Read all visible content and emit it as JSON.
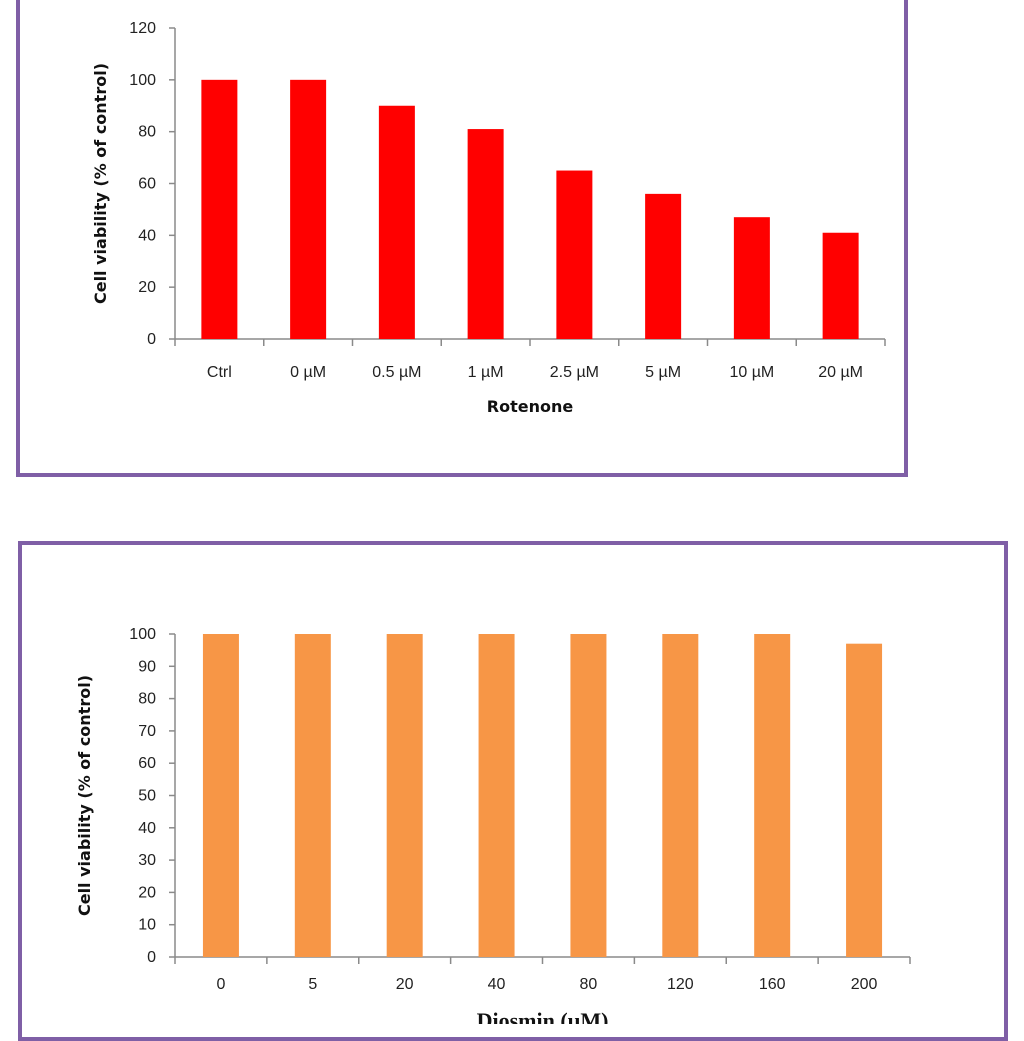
{
  "chart_data": [
    {
      "type": "bar",
      "categories": [
        "Ctrl",
        "0 µM",
        "0.5 µM",
        "1  µM",
        "2.5 µM",
        "5 µM",
        "10 µM",
        "20 µM"
      ],
      "values": [
        100,
        100,
        90,
        81,
        65,
        56,
        47,
        41
      ],
      "xlabel": "Rotenone",
      "ylabel": "Cell viability (% of control)",
      "ylim": [
        0,
        120
      ],
      "yticks": [
        0,
        20,
        40,
        60,
        80,
        100,
        120
      ],
      "color": "#ff0000",
      "grid": false,
      "legend": "none"
    },
    {
      "type": "bar",
      "categories": [
        "0",
        "5",
        "20",
        "40",
        "80",
        "120",
        "160",
        "200"
      ],
      "values": [
        100,
        100,
        100,
        100,
        100,
        100,
        100,
        97
      ],
      "xlabel": "Diosmin (µM)",
      "ylabel": "Cell viability (% of control)",
      "ylim": [
        0,
        100
      ],
      "yticks": [
        0,
        10,
        20,
        30,
        40,
        50,
        60,
        70,
        80,
        90,
        100
      ],
      "color": "#f79646",
      "grid": false,
      "legend": "none"
    }
  ]
}
